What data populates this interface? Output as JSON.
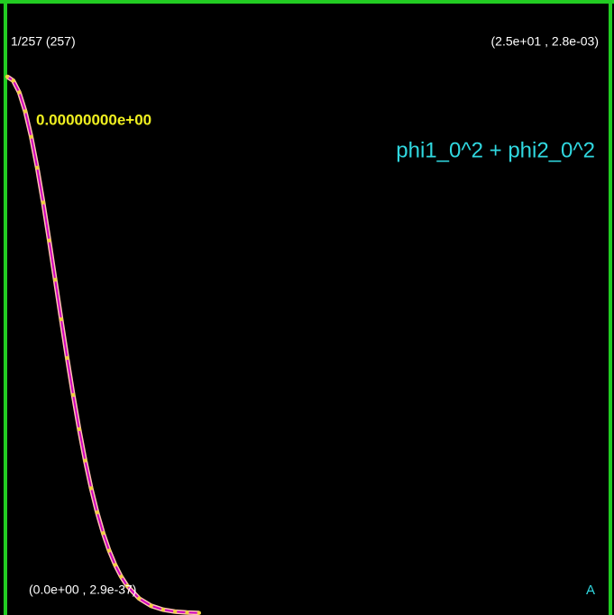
{
  "chart_data": {
    "type": "line",
    "counter_label": "1/257 (257)",
    "top_right_label": "(2.5e+01 , 2.8e-03)",
    "bottom_left_label": "(0.0e+00 , 2.9e-37)",
    "time_label": "0.00000000e+00",
    "title": "phi1_0^2 + phi2_0^2",
    "corner_mark": "A",
    "xlim": [
      0,
      25
    ],
    "ylim": [
      2.9e-37,
      0.0028
    ],
    "x": [
      0,
      0.25,
      0.5,
      0.75,
      1,
      1.25,
      1.5,
      1.75,
      2,
      2.25,
      2.5,
      2.75,
      3,
      3.25,
      3.5,
      3.75,
      4,
      4.25,
      4.5,
      4.75,
      5,
      5.5,
      6,
      6.5,
      7,
      7.5,
      8
    ],
    "series": [
      {
        "color": "#d000c0",
        "values": [
          0.0028,
          0.002779,
          0.002718,
          0.002619,
          0.002486,
          0.002325,
          0.002143,
          0.001945,
          0.00174,
          0.001534,
          0.001332,
          0.001139,
          0.00096,
          0.000797,
          0.000652,
          0.000526,
          0.000418,
          0.000327,
          0.000252,
          0.000191,
          0.000143,
          7.67e-05,
          3.87e-05,
          1.84e-05,
          8.3e-06,
          3.5e-06,
          1.4e-06
        ]
      }
    ]
  }
}
